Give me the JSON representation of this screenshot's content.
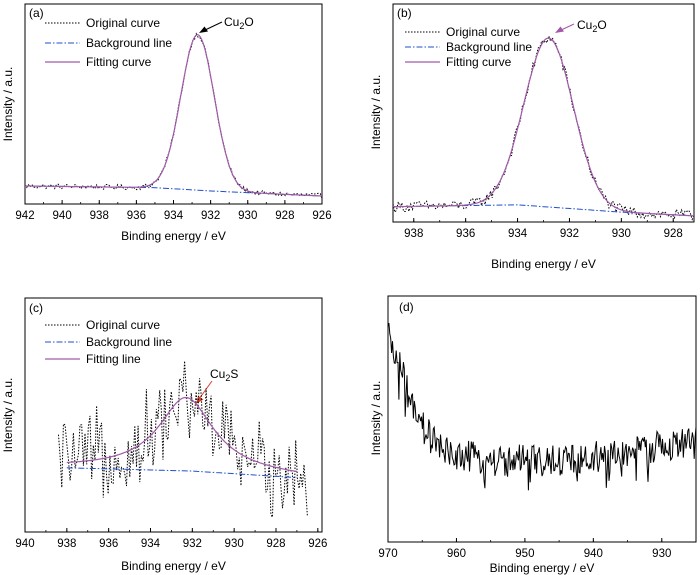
{
  "chart_data": [
    {
      "type": "line",
      "panel_label": "(a)",
      "xlabel": "Binding energy / eV",
      "ylabel": "Intensity / a.u.",
      "xlim": [
        942,
        926
      ],
      "x_ticks": [
        "942",
        "940",
        "938",
        "936",
        "934",
        "932",
        "930",
        "928",
        "926"
      ],
      "ylim": [
        0,
        1.1
      ],
      "legend_placement": "top-left",
      "series": [
        {
          "name": "Original curve",
          "style": "dotted",
          "color": "#000000"
        },
        {
          "name": "Background line",
          "style": "dashdot",
          "color": "#1f4fd0"
        },
        {
          "name": "Fitting curve",
          "style": "solid",
          "color": "#a05aa8"
        }
      ],
      "peak": {
        "center": 932.7,
        "height": 0.93,
        "width": 0.9,
        "shape": "gauss"
      },
      "background": [
        [
          942,
          0.06
        ],
        [
          935,
          0.05
        ],
        [
          932,
          0.03
        ],
        [
          926,
          0.0
        ]
      ],
      "noise": 0.015,
      "annotation": {
        "text": "Cu",
        "sub": "2",
        "text2": "O",
        "arrow_color": "#000000"
      }
    },
    {
      "type": "line",
      "panel_label": "(b)",
      "xlabel": "Binding energy / eV",
      "ylabel": "Intensity / a.u.",
      "xlim": [
        938.8,
        927.2
      ],
      "x_ticks": [
        "938",
        "936",
        "934",
        "932",
        "930",
        "928"
      ],
      "ylim": [
        0,
        1.1
      ],
      "legend_placement": "top-left",
      "series": [
        {
          "name": "Original curve",
          "style": "dotted",
          "color": "#000000"
        },
        {
          "name": "Background line",
          "style": "dashdot",
          "color": "#1f4fd0"
        },
        {
          "name": "Fitting curve",
          "style": "solid",
          "color": "#a05aa8"
        }
      ],
      "peak": {
        "center": 932.8,
        "height": 0.92,
        "width": 0.95,
        "shape": "gauss"
      },
      "background": [
        [
          938.8,
          0.04
        ],
        [
          934,
          0.05
        ],
        [
          930,
          0.01
        ],
        [
          927.2,
          -0.01
        ]
      ],
      "noise": 0.03,
      "annotation": {
        "text": "Cu",
        "sub": "2",
        "text2": "O",
        "arrow_color": "#a05aa8"
      }
    },
    {
      "type": "line",
      "panel_label": "(c)",
      "xlabel": "Binding energy / eV",
      "ylabel": "Intensity / a.u.",
      "xlim": [
        940,
        925.8
      ],
      "x_ticks": [
        "940",
        "938",
        "936",
        "934",
        "932",
        "930",
        "928",
        "926"
      ],
      "ylim": [
        -0.3,
        1.0
      ],
      "legend_placement": "top-left",
      "series": [
        {
          "name": "Original curve",
          "style": "dotted",
          "color": "#000000"
        },
        {
          "name": "Background line",
          "style": "dashdot",
          "color": "#1f4fd0"
        },
        {
          "name": "Fitting line",
          "style": "solid",
          "color": "#a05aa8"
        }
      ],
      "peak": {
        "center": 932.3,
        "height": 0.45,
        "width": 1.6,
        "shape": "lorentz"
      },
      "background": [
        [
          938,
          0.02
        ],
        [
          932,
          0.0
        ],
        [
          927,
          -0.04
        ]
      ],
      "noise": 0.25,
      "orig_range": [
        938.4,
        926.5
      ],
      "fit_range": [
        938,
        927
      ],
      "annotation": {
        "text": "Cu",
        "sub": "2",
        "text2": "S",
        "arrow_color": "#e0402a"
      }
    },
    {
      "type": "line",
      "panel_label": "(d)",
      "xlabel": "Binding energy / eV",
      "ylabel": "Intensity / a.u.",
      "xlim": [
        970,
        925
      ],
      "x_ticks": [
        "970",
        "960",
        "950",
        "940",
        "930"
      ],
      "ylim": [
        0,
        1.0
      ],
      "series": [
        {
          "name": "",
          "style": "solid",
          "color": "#000000"
        }
      ],
      "spectrum_points": [
        [
          970,
          0.85
        ],
        [
          968,
          0.7
        ],
        [
          966,
          0.5
        ],
        [
          962,
          0.36
        ],
        [
          955,
          0.32
        ],
        [
          945,
          0.32
        ],
        [
          935,
          0.35
        ],
        [
          931,
          0.38
        ],
        [
          925,
          0.4
        ]
      ],
      "noise": 0.07
    }
  ]
}
